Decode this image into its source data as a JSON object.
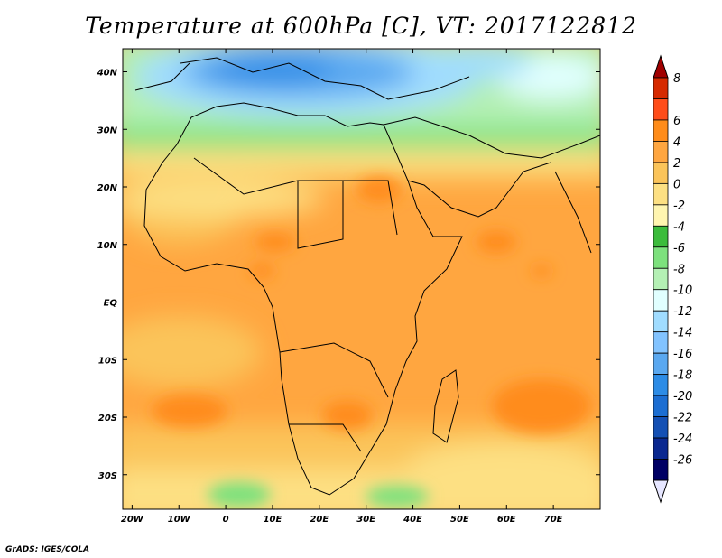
{
  "title": "Temperature at 600hPa [C], VT: 2017122812",
  "credit": "GrADS: IGES/COLA",
  "map": {
    "lon_range": [
      -22,
      80
    ],
    "lat_range": [
      -36,
      44
    ],
    "x_ticks": [
      {
        "lon": -20,
        "label": "20W"
      },
      {
        "lon": -10,
        "label": "10W"
      },
      {
        "lon": 0,
        "label": "0"
      },
      {
        "lon": 10,
        "label": "10E"
      },
      {
        "lon": 20,
        "label": "20E"
      },
      {
        "lon": 30,
        "label": "30E"
      },
      {
        "lon": 40,
        "label": "40E"
      },
      {
        "lon": 50,
        "label": "50E"
      },
      {
        "lon": 60,
        "label": "60E"
      },
      {
        "lon": 70,
        "label": "70E"
      }
    ],
    "y_ticks": [
      {
        "lat": 40,
        "label": "40N"
      },
      {
        "lat": 30,
        "label": "30N"
      },
      {
        "lat": 20,
        "label": "20N"
      },
      {
        "lat": 10,
        "label": "10N"
      },
      {
        "lat": 0,
        "label": "EQ"
      },
      {
        "lat": -10,
        "label": "10S"
      },
      {
        "lat": -20,
        "label": "20S"
      },
      {
        "lat": -30,
        "label": "30S"
      }
    ]
  },
  "colorbar": {
    "labels": [
      "8",
      "6",
      "4",
      "2",
      "0",
      "-2",
      "-4",
      "-6",
      "-8",
      "-10",
      "-12",
      "-14",
      "-16",
      "-18",
      "-20",
      "-22",
      "-24",
      "-26"
    ],
    "colors_top_to_bottom": [
      "#d62a00",
      "#ff4d1a",
      "#ff8c1a",
      "#ffa640",
      "#fbc45a",
      "#fde083",
      "#fff5b0",
      "#3cbc3c",
      "#7de17d",
      "#b4f0b4",
      "#e1ffff",
      "#a0dcff",
      "#82c3ff",
      "#5aa8f0",
      "#2d8ce6",
      "#1c6ed2",
      "#1450b4",
      "#0a2890",
      "#000064"
    ],
    "top_arrow_color": "#a00000",
    "bottom_arrow_color": "#e6e6ff"
  }
}
